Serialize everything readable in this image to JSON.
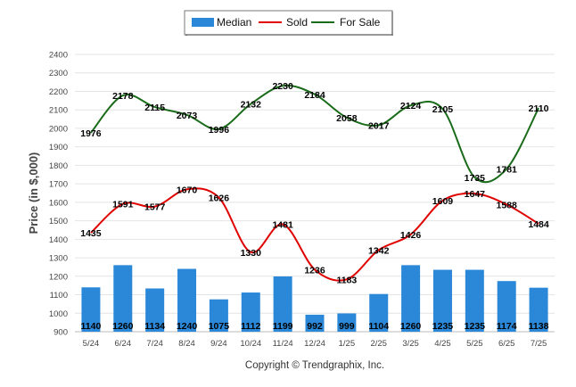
{
  "chart_data": {
    "type": "bar",
    "ylabel": "Price (in $,000)",
    "ylim": [
      900,
      2400
    ],
    "yticks": [
      900,
      1000,
      1100,
      1200,
      1300,
      1400,
      1500,
      1600,
      1700,
      1800,
      1900,
      2000,
      2100,
      2200,
      2300,
      2400
    ],
    "grid": true,
    "legend_position": "top-center",
    "categories": [
      "5/24",
      "6/24",
      "7/24",
      "8/24",
      "9/24",
      "10/24",
      "11/24",
      "12/24",
      "1/25",
      "2/25",
      "3/25",
      "4/25",
      "5/25",
      "6/25",
      "7/25"
    ],
    "series": [
      {
        "name": "Median",
        "type": "bar",
        "color": "#2b88d8",
        "values": [
          1140,
          1260,
          1134,
          1240,
          1075,
          1112,
          1199,
          992,
          999,
          1104,
          1260,
          1235,
          1235,
          1174,
          1138
        ]
      },
      {
        "name": "Sold",
        "type": "line",
        "color": "#e00000",
        "values": [
          1435,
          1591,
          1577,
          1670,
          1626,
          1330,
          1481,
          1236,
          1183,
          1342,
          1426,
          1609,
          1647,
          1588,
          1484
        ]
      },
      {
        "name": "For Sale",
        "type": "line",
        "color": "#1a6b1a",
        "values": [
          1976,
          2178,
          2115,
          2073,
          1996,
          2132,
          2230,
          2184,
          2058,
          2017,
          2124,
          2105,
          1735,
          1781,
          2110
        ]
      }
    ]
  },
  "footer": {
    "copyright": "Copyright © Trendgraphix, Inc."
  }
}
